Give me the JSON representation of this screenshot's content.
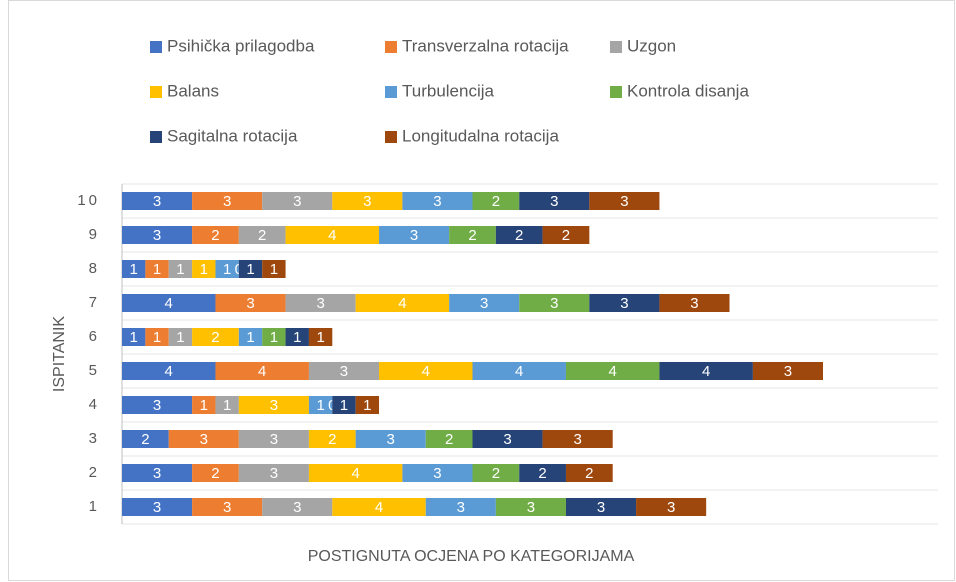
{
  "chart_data": {
    "type": "bar",
    "orientation": "horizontal",
    "stacked": true,
    "x_label": "POSTIGNUTA OCJENA PO KATEGORIJAMA",
    "y_label": "ISPITANIK",
    "categories": [
      "1",
      "2",
      "3",
      "4",
      "5",
      "6",
      "7",
      "8",
      "9",
      "10"
    ],
    "series": [
      {
        "name": "Psihička prilagodba",
        "color": "#4472c4",
        "values": [
          3,
          3,
          2,
          3,
          4,
          1,
          4,
          1,
          3,
          3
        ]
      },
      {
        "name": "Transverzalna rotacija",
        "color": "#ed7d31",
        "values": [
          3,
          2,
          3,
          1,
          4,
          1,
          3,
          1,
          2,
          3
        ]
      },
      {
        "name": "Uzgon",
        "color": "#a5a5a5",
        "values": [
          3,
          3,
          3,
          1,
          3,
          1,
          3,
          1,
          2,
          3
        ]
      },
      {
        "name": "Balans",
        "color": "#ffc000",
        "values": [
          4,
          4,
          2,
          3,
          4,
          2,
          4,
          1,
          4,
          3
        ]
      },
      {
        "name": "Turbulencija",
        "color": "#5b9bd5",
        "values": [
          3,
          3,
          3,
          1,
          4,
          1,
          3,
          1,
          3,
          3
        ]
      },
      {
        "name": "Kontrola disanja",
        "color": "#70ad47",
        "values": [
          3,
          2,
          2,
          0,
          4,
          1,
          3,
          0,
          2,
          2
        ]
      },
      {
        "name": "Sagitalna rotacija",
        "color": "#264478",
        "values": [
          3,
          2,
          3,
          1,
          4,
          1,
          3,
          1,
          2,
          3
        ]
      },
      {
        "name": "Longitudalna rotacija",
        "color": "#9e480e",
        "values": [
          3,
          2,
          3,
          1,
          3,
          1,
          3,
          1,
          2,
          3
        ]
      }
    ]
  }
}
